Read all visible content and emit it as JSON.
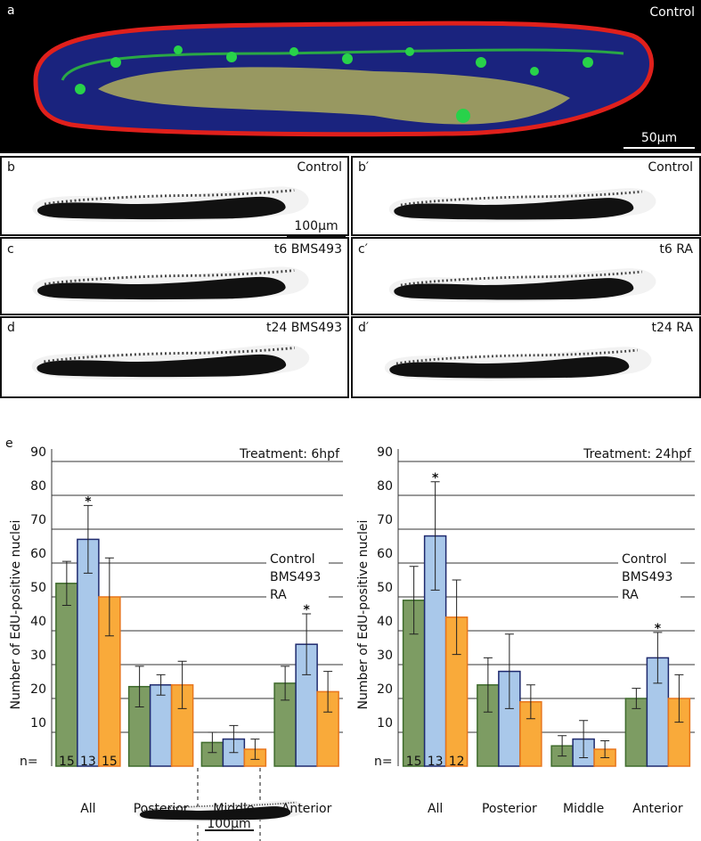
{
  "figure": {
    "panel_a": {
      "label": "a",
      "title": "Control",
      "scale_bar": "50µm"
    },
    "panels": [
      {
        "label": "b",
        "title": "Control",
        "scale_bar": "100µm"
      },
      {
        "label": "b′",
        "title": "Control"
      },
      {
        "label": "c",
        "title": "t6 BMS493"
      },
      {
        "label": "c′",
        "title": "t6 RA"
      },
      {
        "label": "d",
        "title": "t24 BMS493"
      },
      {
        "label": "d′",
        "title": "t24 RA"
      }
    ],
    "panel_e": {
      "label": "e",
      "scale_bar": "100µm"
    }
  },
  "chart_data": [
    {
      "type": "bar",
      "title": "Treatment: 6hpf",
      "y_label": "Number of EdU-positive nuclei",
      "categories": [
        "All",
        "Posterior",
        "Middle",
        "Anterior"
      ],
      "n_label": "n=",
      "series": [
        {
          "name": "Control",
          "color": "#7d9c63",
          "edge": "#3f6b2c",
          "label_color": "#3a7a2a",
          "values": [
            54,
            23.5,
            7,
            24.5
          ],
          "errors": [
            6.5,
            6,
            3,
            5
          ],
          "n": [
            15,
            null,
            null,
            null
          ]
        },
        {
          "name": "BMS493",
          "color": "#a9c8ea",
          "edge": "#1f2a6e",
          "label_color": "#1d1d72",
          "values": [
            67,
            24,
            8,
            36
          ],
          "errors": [
            10,
            3,
            4,
            9
          ],
          "n": [
            13,
            null,
            null,
            null
          ],
          "significance": [
            "*",
            null,
            null,
            "*"
          ]
        },
        {
          "name": "RA",
          "color": "#f9aa3a",
          "edge": "#e8761c",
          "label_color": "#f0801e",
          "values": [
            50,
            24,
            5,
            22
          ],
          "errors": [
            11.5,
            7,
            3,
            6
          ],
          "n": [
            15,
            null,
            null,
            null
          ]
        }
      ],
      "ylim": [
        0,
        90
      ],
      "yticks": [
        10,
        20,
        30,
        40,
        50,
        60,
        70,
        80,
        90
      ],
      "grid": true,
      "legend": "right"
    },
    {
      "type": "bar",
      "title": "Treatment: 24hpf",
      "y_label": "Number of EdU-positive nuclei",
      "categories": [
        "All",
        "Posterior",
        "Middle",
        "Anterior"
      ],
      "n_label": "n=",
      "series": [
        {
          "name": "Control",
          "color": "#7d9c63",
          "edge": "#3f6b2c",
          "label_color": "#3a7a2a",
          "values": [
            49,
            24,
            6,
            20
          ],
          "errors": [
            10,
            8,
            3,
            3
          ],
          "n": [
            15,
            null,
            null,
            null
          ]
        },
        {
          "name": "BMS493",
          "color": "#a9c8ea",
          "edge": "#1f2a6e",
          "label_color": "#1d1d72",
          "values": [
            68,
            28,
            8,
            32
          ],
          "errors": [
            16,
            11,
            5.5,
            7.5
          ],
          "n": [
            13,
            null,
            null,
            null
          ],
          "significance": [
            "*",
            null,
            null,
            "*"
          ]
        },
        {
          "name": "RA",
          "color": "#f9aa3a",
          "edge": "#e8761c",
          "label_color": "#f0801e",
          "values": [
            44,
            19,
            5,
            20
          ],
          "errors": [
            11,
            5,
            2.5,
            7
          ],
          "n": [
            12,
            null,
            null,
            null
          ]
        }
      ],
      "ylim": [
        0,
        90
      ],
      "yticks": [
        10,
        20,
        30,
        40,
        50,
        60,
        70,
        80,
        90
      ],
      "grid": true,
      "legend": "right"
    }
  ]
}
